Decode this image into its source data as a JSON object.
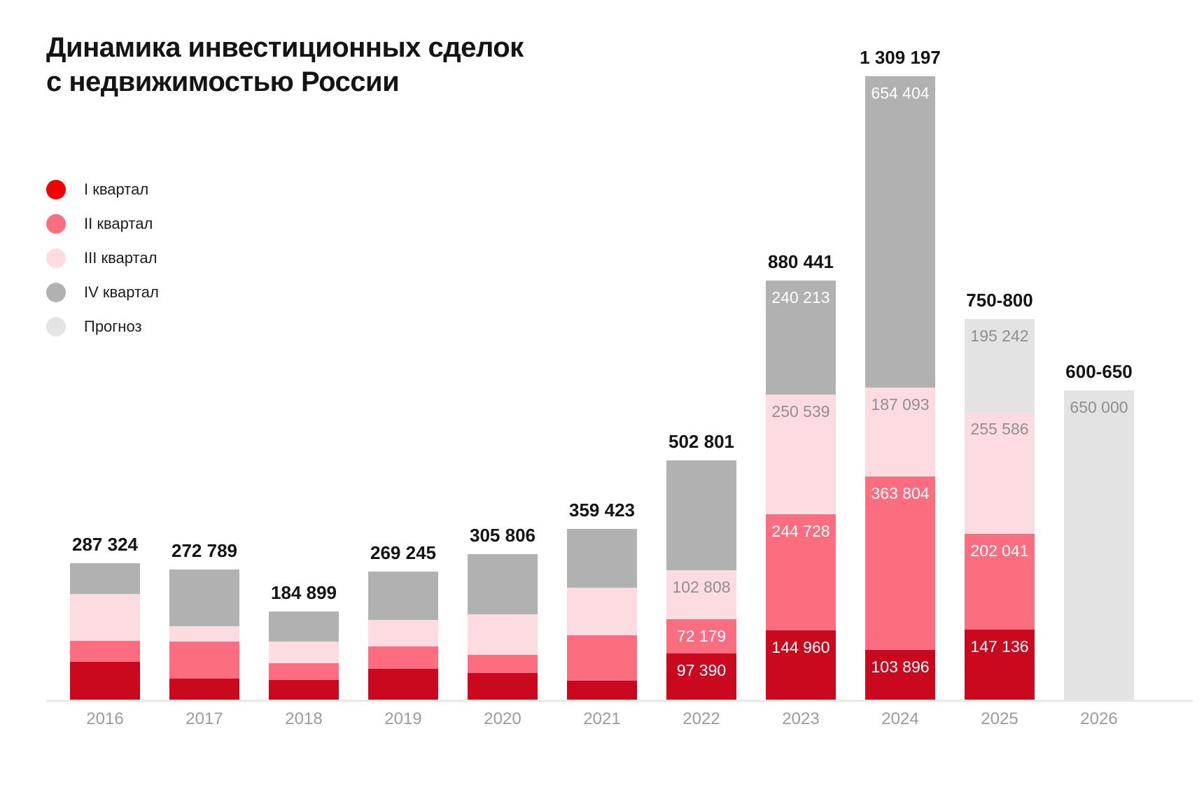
{
  "title": {
    "line1": "Динамика инвестиционных сделок",
    "line2": "с недвижимостью России"
  },
  "legend": {
    "position": "left",
    "items": [
      {
        "id": "q1",
        "label": "I квартал",
        "color": "#f50000"
      },
      {
        "id": "q2",
        "label": "II квартал",
        "color": "#fc6d7f"
      },
      {
        "id": "q3",
        "label": "III квартал",
        "color": "#fddce1"
      },
      {
        "id": "q4",
        "label": "IV квартал",
        "color": "#b1b1b1"
      },
      {
        "id": "forecast",
        "label": "Прогноз",
        "color": "#e4e4e4"
      }
    ]
  },
  "chart_data": {
    "type": "bar",
    "stacked": true,
    "title": "Динамика инвестиционных сделок с недвижимостью России",
    "xlabel": "",
    "ylabel": "",
    "grid": false,
    "categories": [
      "2016",
      "2017",
      "2018",
      "2019",
      "2020",
      "2021",
      "2022",
      "2023",
      "2024",
      "2025",
      "2026"
    ],
    "segment_colors": {
      "q1": "#ca091f",
      "q2": "#fc6d7f",
      "q3": "#fddce1",
      "q4": "#b1b1b1",
      "forecast": "#e3e3e3"
    },
    "segment_label_colors": {
      "q1": "#ffffff",
      "q2": "#ffffff",
      "q3": "#8f8f8f",
      "q4": "#ffffff",
      "forecast": "#8f8f8f"
    },
    "bars": [
      {
        "year": "2016",
        "total_label": "287 324",
        "segments": [
          {
            "type": "q1",
            "value": 79000,
            "label": null
          },
          {
            "type": "q2",
            "value": 45000,
            "label": null
          },
          {
            "type": "q3",
            "value": 99000,
            "label": null
          },
          {
            "type": "q4",
            "value": 64000,
            "label": null
          }
        ]
      },
      {
        "year": "2017",
        "total_label": "272 789",
        "segments": [
          {
            "type": "q1",
            "value": 44000,
            "label": null
          },
          {
            "type": "q2",
            "value": 78000,
            "label": null
          },
          {
            "type": "q3",
            "value": 32000,
            "label": null
          },
          {
            "type": "q4",
            "value": 119000,
            "label": null
          }
        ]
      },
      {
        "year": "2018",
        "total_label": "184 899",
        "segments": [
          {
            "type": "q1",
            "value": 41000,
            "label": null
          },
          {
            "type": "q2",
            "value": 35000,
            "label": null
          },
          {
            "type": "q3",
            "value": 46000,
            "label": null
          },
          {
            "type": "q4",
            "value": 63000,
            "label": null
          }
        ]
      },
      {
        "year": "2019",
        "total_label": "269 245",
        "segments": [
          {
            "type": "q1",
            "value": 65000,
            "label": null
          },
          {
            "type": "q2",
            "value": 46000,
            "label": null
          },
          {
            "type": "q3",
            "value": 56000,
            "label": null
          },
          {
            "type": "q4",
            "value": 102000,
            "label": null
          }
        ]
      },
      {
        "year": "2020",
        "total_label": "305 806",
        "segments": [
          {
            "type": "q1",
            "value": 56000,
            "label": null
          },
          {
            "type": "q2",
            "value": 38000,
            "label": null
          },
          {
            "type": "q3",
            "value": 85000,
            "label": null
          },
          {
            "type": "q4",
            "value": 127000,
            "label": null
          }
        ]
      },
      {
        "year": "2021",
        "total_label": "359 423",
        "segments": [
          {
            "type": "q1",
            "value": 40000,
            "label": null
          },
          {
            "type": "q2",
            "value": 96000,
            "label": null
          },
          {
            "type": "q3",
            "value": 99000,
            "label": null
          },
          {
            "type": "q4",
            "value": 124000,
            "label": null
          }
        ]
      },
      {
        "year": "2022",
        "total_label": "502 801",
        "segments": [
          {
            "type": "q1",
            "value": 97390,
            "label": "97 390"
          },
          {
            "type": "q2",
            "value": 72179,
            "label": "72 179"
          },
          {
            "type": "q3",
            "value": 102808,
            "label": "102 808"
          },
          {
            "type": "q4",
            "value": 230424,
            "label": null
          }
        ]
      },
      {
        "year": "2023",
        "total_label": "880 441",
        "segments": [
          {
            "type": "q1",
            "value": 144960,
            "label": "144 960"
          },
          {
            "type": "q2",
            "value": 244728,
            "label": "244 728"
          },
          {
            "type": "q3",
            "value": 250539,
            "label": "250 539"
          },
          {
            "type": "q4",
            "value": 240213,
            "label": "240 213"
          }
        ]
      },
      {
        "year": "2024",
        "total_label": "1 309 197",
        "segments": [
          {
            "type": "q1",
            "value": 103896,
            "label": "103 896"
          },
          {
            "type": "q2",
            "value": 363804,
            "label": "363 804"
          },
          {
            "type": "q3",
            "value": 187093,
            "label": "187 093"
          },
          {
            "type": "q4",
            "value": 654404,
            "label": "654 404"
          }
        ]
      },
      {
        "year": "2025",
        "total_label": "750-800",
        "segments": [
          {
            "type": "q1",
            "value": 147136,
            "label": "147 136"
          },
          {
            "type": "q2",
            "value": 202041,
            "label": "202 041"
          },
          {
            "type": "q3",
            "value": 255586,
            "label": "255 586"
          },
          {
            "type": "forecast",
            "value": 195242,
            "label": "195 242"
          }
        ]
      },
      {
        "year": "2026",
        "total_label": "600-650",
        "segments": [
          {
            "type": "forecast",
            "value": 650000,
            "label": "650 000"
          }
        ]
      }
    ]
  }
}
